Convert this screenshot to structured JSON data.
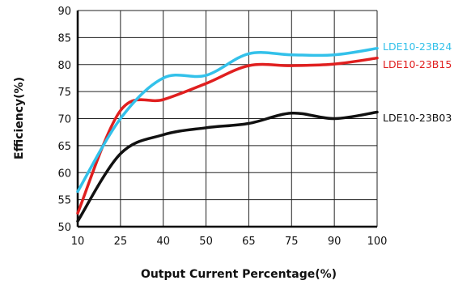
{
  "chart_data": {
    "type": "line",
    "title": "",
    "xlabel": "Output Current Percentage(%)",
    "ylabel": "Efficiency(%)",
    "x_ticks": [
      "10",
      "25",
      "40",
      "50",
      "65",
      "75",
      "90",
      "100"
    ],
    "y_ticks": [
      "50",
      "55",
      "60",
      "65",
      "70",
      "75",
      "80",
      "85",
      "90"
    ],
    "ylim": [
      50,
      90
    ],
    "grid": true,
    "legend_placement": "right, beside line ends",
    "series": [
      {
        "name": "LDE10-23B24",
        "color": "#33c1ea",
        "points": [
          [
            10,
            56.5
          ],
          [
            25,
            70
          ],
          [
            40,
            77.5
          ],
          [
            50,
            78
          ],
          [
            65,
            82
          ],
          [
            75,
            81.8
          ],
          [
            90,
            81.8
          ],
          [
            100,
            83
          ]
        ]
      },
      {
        "name": "LDE10-23B15",
        "color": "#e01f1f",
        "points": [
          [
            10,
            52.5
          ],
          [
            25,
            71.5
          ],
          [
            40,
            73.5
          ],
          [
            50,
            76.5
          ],
          [
            65,
            79.8
          ],
          [
            75,
            79.8
          ],
          [
            90,
            80.1
          ],
          [
            100,
            81.2
          ]
        ]
      },
      {
        "name": "LDE10-23B03",
        "color": "#111111",
        "points": [
          [
            10,
            51
          ],
          [
            25,
            63.5
          ],
          [
            40,
            67
          ],
          [
            50,
            68.3
          ],
          [
            65,
            69.1
          ],
          [
            75,
            71
          ],
          [
            90,
            70
          ],
          [
            100,
            71.2
          ]
        ]
      }
    ]
  }
}
